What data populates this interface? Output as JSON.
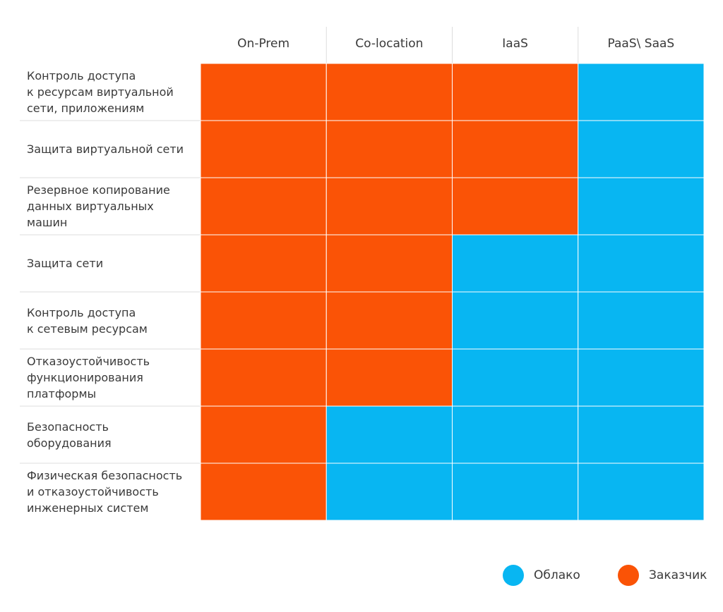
{
  "chart_data": {
    "type": "heatmap",
    "columns": [
      "On-Prem",
      "Co-location",
      "IaaS",
      "PaaS\\ SaaS"
    ],
    "rows": [
      {
        "label": "Контроль доступа\nк ресурсам виртуальной\nсети, приложениям",
        "values": [
          "customer",
          "customer",
          "customer",
          "cloud"
        ]
      },
      {
        "label": "Защита виртуальной сети",
        "values": [
          "customer",
          "customer",
          "customer",
          "cloud"
        ]
      },
      {
        "label": "Резервное копирование\nданных виртуальных\nмашин",
        "values": [
          "customer",
          "customer",
          "customer",
          "cloud"
        ]
      },
      {
        "label": "Защита сети",
        "values": [
          "customer",
          "customer",
          "cloud",
          "cloud"
        ]
      },
      {
        "label": "Контроль доступа\nк сетевым ресурсам",
        "values": [
          "customer",
          "customer",
          "cloud",
          "cloud"
        ]
      },
      {
        "label": "Отказоустойчивость\nфункционирования\nплатформы",
        "values": [
          "customer",
          "customer",
          "cloud",
          "cloud"
        ]
      },
      {
        "label": "Безопасность\nоборудования",
        "values": [
          "customer",
          "cloud",
          "cloud",
          "cloud"
        ]
      },
      {
        "label": "Физическая безопасность\nи отказоустойчивость\nинженерных систем",
        "values": [
          "customer",
          "cloud",
          "cloud",
          "cloud"
        ]
      }
    ],
    "legend": [
      {
        "key": "cloud",
        "label": "Облако",
        "color": "#08b6f2"
      },
      {
        "key": "customer",
        "label": "Заказчик",
        "color": "#fa5306"
      }
    ],
    "legend_position": "bottom-right",
    "grid": true
  },
  "colors": {
    "grid_line": "#dcdcdc",
    "cell_divider": "#ffffff",
    "text": "#3a3a3a"
  }
}
